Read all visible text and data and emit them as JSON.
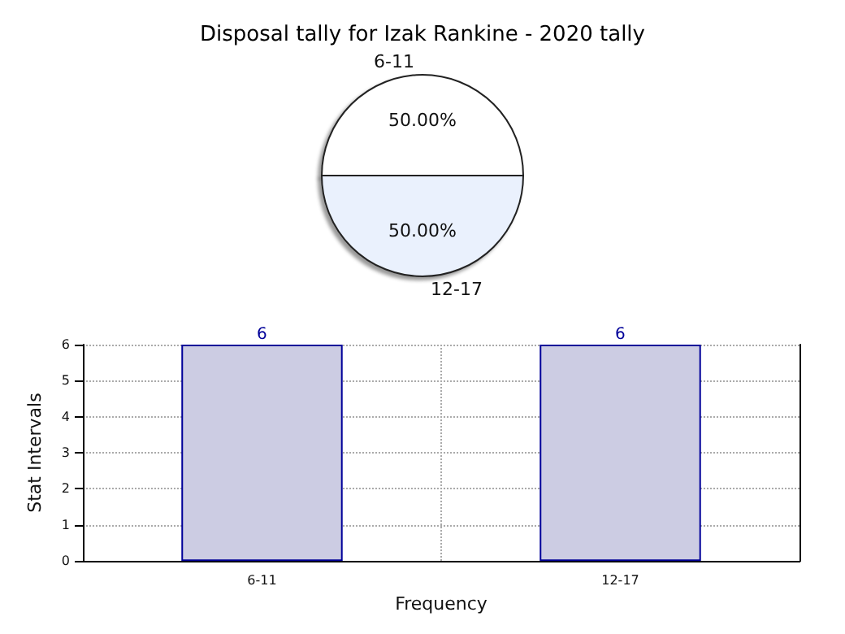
{
  "chart_data": [
    {
      "type": "pie",
      "title": "Disposal tally for Izak Rankine - 2020 tally",
      "categories": [
        "6-11",
        "12-17"
      ],
      "values": [
        50,
        50
      ],
      "colors": [
        "#ffffff",
        "#eaf1fd"
      ],
      "value_labels": [
        "50.00%",
        "50.00%"
      ]
    },
    {
      "type": "bar",
      "categories": [
        "6-11",
        "12-17"
      ],
      "values": [
        6,
        6
      ],
      "color": "#cccce3",
      "xlabel": "Frequency",
      "ylabel": "Stat Intervals",
      "ylim": [
        0,
        6
      ],
      "yticks": [
        0,
        1,
        2,
        3,
        4,
        5,
        6
      ],
      "grid": true,
      "data_labels": true
    }
  ]
}
